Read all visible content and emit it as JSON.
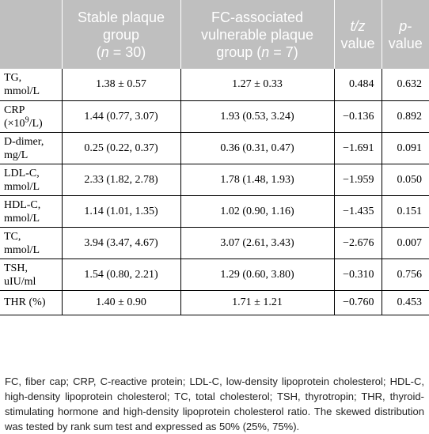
{
  "table": {
    "headers": [
      {
        "line1": "",
        "line2": "",
        "line3": ""
      },
      {
        "line1": "Stable plaque",
        "line2": "group",
        "n_prefix": "(",
        "n_var": "n",
        "n_suffix": " = 30)"
      },
      {
        "line1": "FC-associated",
        "line2": "vulnerable plaque",
        "line3_prefix": "group (",
        "n_var": "n",
        "n_suffix": " = 7)"
      },
      {
        "ital": "t/z",
        "line2": "value"
      },
      {
        "ital": "p-",
        "line2": "value"
      }
    ],
    "rows": [
      {
        "label1": "TG,",
        "label2": "mmol/L",
        "stable": "1.38 ± 0.57",
        "fc": "1.27 ± 0.33",
        "tz": "0.484",
        "p": "0.632"
      },
      {
        "label1": "CRP",
        "label2_pre": "(×10",
        "label2_sup": "9",
        "label2_post": "/L)",
        "stable": "1.44 (0.77, 3.07)",
        "fc": "1.93 (0.53, 3.24)",
        "tz": "−0.136",
        "p": "0.892"
      },
      {
        "label1": "D-dimer,",
        "label2": "mg/L",
        "stable": "0.25 (0.22, 0.37)",
        "fc": "0.36 (0.31, 0.47)",
        "tz": "−1.691",
        "p": "0.091"
      },
      {
        "label1": "LDL-C,",
        "label2": "mmol/L",
        "stable": "2.33 (1.82, 2.78)",
        "fc": "1.78 (1.48, 1.93)",
        "tz": "−1.959",
        "p": "0.050"
      },
      {
        "label1": "HDL-C,",
        "label2": "mmol/L",
        "stable": "1.14 (1.01, 1.35)",
        "fc": "1.02 (0.90, 1.16)",
        "tz": "−1.435",
        "p": "0.151"
      },
      {
        "label1": "TC,",
        "label2": "mmol/L",
        "stable": "3.94 (3.47, 4.67)",
        "fc": "3.07 (2.61, 3.43)",
        "tz": "−2.676",
        "p": "0.007"
      },
      {
        "label1": "TSH,",
        "label2": "uIU/ml",
        "stable": "1.54 (0.80, 2.21)",
        "fc": "1.29 (0.60, 3.80)",
        "tz": "−0.310",
        "p": "0.756"
      },
      {
        "label1": "THR (%)",
        "label2": "",
        "stable": "1.40 ± 0.90",
        "fc": "1.71 ± 1.21",
        "tz": "−0.760",
        "p": "0.453"
      }
    ]
  },
  "footnote": "FC, fiber cap; CRP, C-reactive protein; LDL-C, low-density lipoprotein cholesterol; HDL-C, high-density lipoprotein cholesterol; TC, total cholesterol; TSH, thyrotropin; THR, thyroid-stimulating hormone and high-density lipoprotein cholesterol ratio. The skewed distribution was tested by rank sum test and expressed as 50% (25%, 75%).",
  "colors": {
    "header_bg": "#bfbfbf",
    "header_text": "#ffffff",
    "rule": "#000000"
  }
}
